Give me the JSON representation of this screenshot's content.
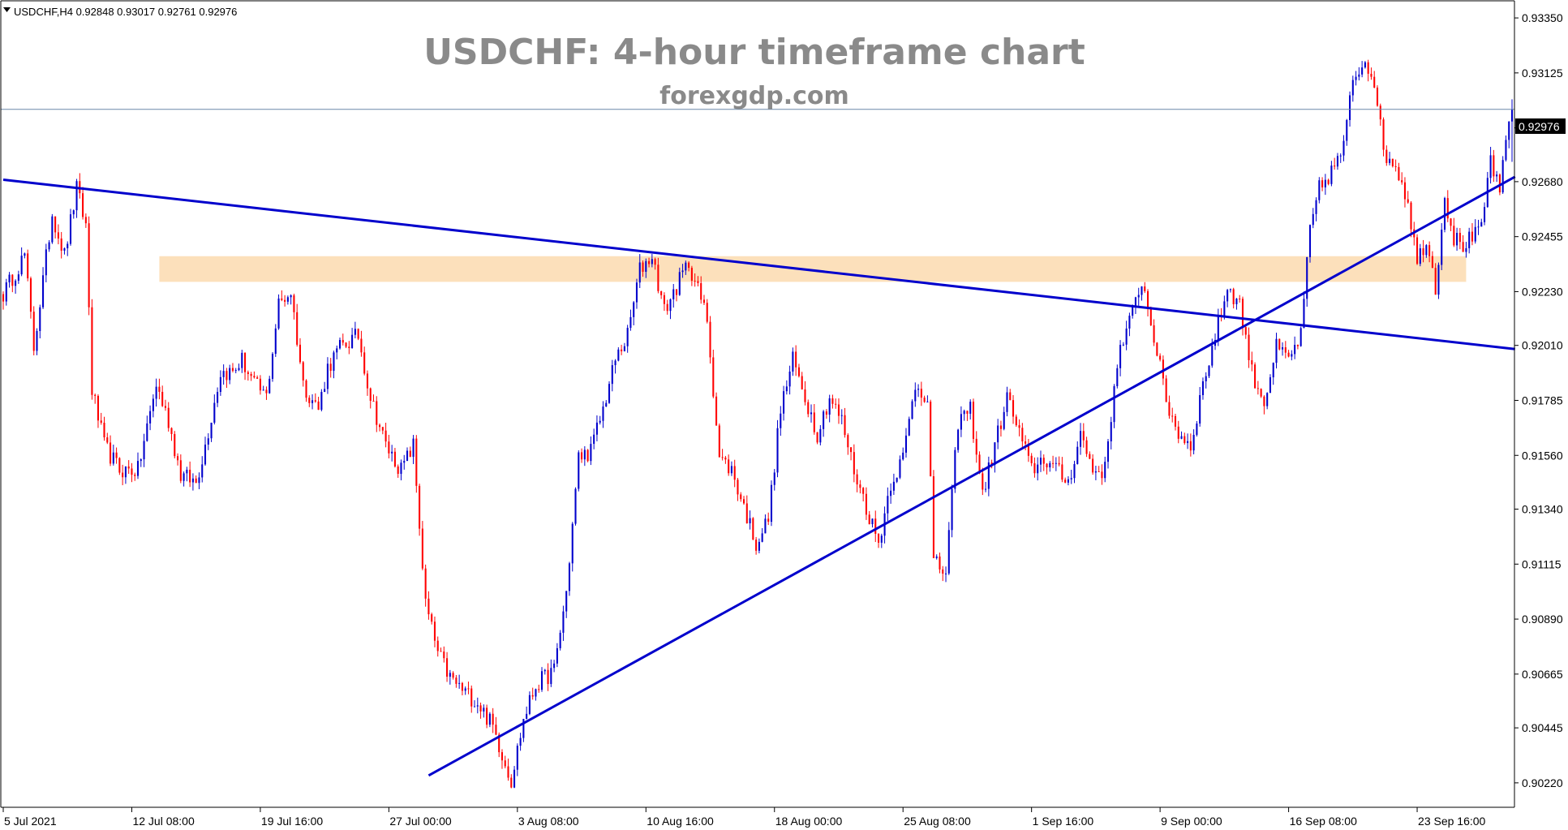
{
  "header": {
    "caret_icon": "caret-down-icon",
    "text": "USDCHF,H4  0.92848 0.93017 0.92761 0.92976"
  },
  "overlay": {
    "title": "USDCHF: 4-hour timeframe chart",
    "subtitle": "forexgdp.com"
  },
  "chart_data": {
    "type": "candlestick",
    "symbol": "USDCHF",
    "timeframe": "H4",
    "ohlc_header": {
      "open": 0.92848,
      "high": 0.93017,
      "low": 0.92761,
      "close": 0.92976
    },
    "current_price": 0.92976,
    "current_price_label": "0.92976",
    "ylim": [
      0.9012,
      0.9342
    ],
    "y_ticks": [
      "0.93350",
      "0.93125",
      "0.92900",
      "0.92680",
      "0.92455",
      "0.92230",
      "0.92010",
      "0.91785",
      "0.91560",
      "0.91340",
      "0.91115",
      "0.90890",
      "0.90665",
      "0.90445",
      "0.90220"
    ],
    "x_ticks": [
      "5 Jul 2021",
      "12 Jul 08:00",
      "19 Jul 16:00",
      "27 Jul 00:00",
      "3 Aug 08:00",
      "10 Aug 16:00",
      "18 Aug 00:00",
      "25 Aug 08:00",
      "1 Sep 16:00",
      "9 Sep 00:00",
      "16 Sep 08:00",
      "23 Sep 16:00"
    ],
    "x_tick_bars": [
      0,
      42,
      84,
      126,
      168,
      210,
      252,
      294,
      336,
      378,
      420,
      462
    ],
    "bar_count": 494,
    "colors": {
      "bull": "#0000cc",
      "bear": "#ff0000",
      "trendline": "#0000cc",
      "zone": "#fce0bb",
      "price_line": "#6a88a8"
    },
    "pivots": [
      {
        "i": 0,
        "p": 0.9222
      },
      {
        "i": 7,
        "p": 0.9238
      },
      {
        "i": 10,
        "p": 0.92
      },
      {
        "i": 16,
        "p": 0.9255
      },
      {
        "i": 20,
        "p": 0.9238
      },
      {
        "i": 24,
        "p": 0.9265
      },
      {
        "i": 27,
        "p": 0.925
      },
      {
        "i": 29,
        "p": 0.9183
      },
      {
        "i": 33,
        "p": 0.916
      },
      {
        "i": 38,
        "p": 0.915
      },
      {
        "i": 44,
        "p": 0.915
      },
      {
        "i": 50,
        "p": 0.9185
      },
      {
        "i": 54,
        "p": 0.917
      },
      {
        "i": 58,
        "p": 0.9148
      },
      {
        "i": 63,
        "p": 0.9145
      },
      {
        "i": 66,
        "p": 0.916
      },
      {
        "i": 71,
        "p": 0.919
      },
      {
        "i": 75,
        "p": 0.919
      },
      {
        "i": 78,
        "p": 0.9195
      },
      {
        "i": 82,
        "p": 0.9185
      },
      {
        "i": 86,
        "p": 0.918
      },
      {
        "i": 90,
        "p": 0.9218
      },
      {
        "i": 94,
        "p": 0.9223
      },
      {
        "i": 98,
        "p": 0.9185
      },
      {
        "i": 103,
        "p": 0.9175
      },
      {
        "i": 106,
        "p": 0.9192
      },
      {
        "i": 110,
        "p": 0.92
      },
      {
        "i": 116,
        "p": 0.9205
      },
      {
        "i": 120,
        "p": 0.918
      },
      {
        "i": 125,
        "p": 0.916
      },
      {
        "i": 130,
        "p": 0.915
      },
      {
        "i": 134,
        "p": 0.916
      },
      {
        "i": 138,
        "p": 0.9095
      },
      {
        "i": 142,
        "p": 0.9075
      },
      {
        "i": 146,
        "p": 0.9065
      },
      {
        "i": 150,
        "p": 0.906
      },
      {
        "i": 155,
        "p": 0.9055
      },
      {
        "i": 160,
        "p": 0.9045
      },
      {
        "i": 166,
        "p": 0.9023
      },
      {
        "i": 170,
        "p": 0.9048
      },
      {
        "i": 174,
        "p": 0.9062
      },
      {
        "i": 180,
        "p": 0.9068
      },
      {
        "i": 184,
        "p": 0.91
      },
      {
        "i": 188,
        "p": 0.9155
      },
      {
        "i": 192,
        "p": 0.9158
      },
      {
        "i": 196,
        "p": 0.9175
      },
      {
        "i": 200,
        "p": 0.9195
      },
      {
        "i": 204,
        "p": 0.9205
      },
      {
        "i": 208,
        "p": 0.9232
      },
      {
        "i": 212,
        "p": 0.9238
      },
      {
        "i": 216,
        "p": 0.9215
      },
      {
        "i": 220,
        "p": 0.9225
      },
      {
        "i": 224,
        "p": 0.9235
      },
      {
        "i": 230,
        "p": 0.9212
      },
      {
        "i": 234,
        "p": 0.9155
      },
      {
        "i": 238,
        "p": 0.915
      },
      {
        "i": 242,
        "p": 0.9135
      },
      {
        "i": 246,
        "p": 0.912
      },
      {
        "i": 250,
        "p": 0.913
      },
      {
        "i": 254,
        "p": 0.9175
      },
      {
        "i": 258,
        "p": 0.9195
      },
      {
        "i": 262,
        "p": 0.918
      },
      {
        "i": 266,
        "p": 0.9165
      },
      {
        "i": 270,
        "p": 0.918
      },
      {
        "i": 274,
        "p": 0.917
      },
      {
        "i": 278,
        "p": 0.915
      },
      {
        "i": 282,
        "p": 0.9135
      },
      {
        "i": 286,
        "p": 0.912
      },
      {
        "i": 290,
        "p": 0.9145
      },
      {
        "i": 294,
        "p": 0.9155
      },
      {
        "i": 298,
        "p": 0.9185
      },
      {
        "i": 302,
        "p": 0.918
      },
      {
        "i": 304,
        "p": 0.9112
      },
      {
        "i": 308,
        "p": 0.9108
      },
      {
        "i": 312,
        "p": 0.917
      },
      {
        "i": 316,
        "p": 0.9175
      },
      {
        "i": 320,
        "p": 0.914
      },
      {
        "i": 324,
        "p": 0.916
      },
      {
        "i": 328,
        "p": 0.918
      },
      {
        "i": 332,
        "p": 0.9165
      },
      {
        "i": 336,
        "p": 0.915
      },
      {
        "i": 340,
        "p": 0.9155
      },
      {
        "i": 344,
        "p": 0.915
      },
      {
        "i": 348,
        "p": 0.9145
      },
      {
        "i": 352,
        "p": 0.9165
      },
      {
        "i": 356,
        "p": 0.915
      },
      {
        "i": 360,
        "p": 0.915
      },
      {
        "i": 364,
        "p": 0.9195
      },
      {
        "i": 368,
        "p": 0.921
      },
      {
        "i": 372,
        "p": 0.9228
      },
      {
        "i": 376,
        "p": 0.9205
      },
      {
        "i": 380,
        "p": 0.9178
      },
      {
        "i": 384,
        "p": 0.9165
      },
      {
        "i": 388,
        "p": 0.916
      },
      {
        "i": 392,
        "p": 0.9185
      },
      {
        "i": 396,
        "p": 0.9205
      },
      {
        "i": 400,
        "p": 0.9225
      },
      {
        "i": 404,
        "p": 0.9218
      },
      {
        "i": 408,
        "p": 0.919
      },
      {
        "i": 412,
        "p": 0.9178
      },
      {
        "i": 416,
        "p": 0.92
      },
      {
        "i": 420,
        "p": 0.9195
      },
      {
        "i": 424,
        "p": 0.9205
      },
      {
        "i": 427,
        "p": 0.9248
      },
      {
        "i": 430,
        "p": 0.9265
      },
      {
        "i": 434,
        "p": 0.9272
      },
      {
        "i": 438,
        "p": 0.9282
      },
      {
        "i": 441,
        "p": 0.931
      },
      {
        "i": 445,
        "p": 0.9318
      },
      {
        "i": 448,
        "p": 0.931
      },
      {
        "i": 451,
        "p": 0.928
      },
      {
        "i": 455,
        "p": 0.9275
      },
      {
        "i": 459,
        "p": 0.926
      },
      {
        "i": 462,
        "p": 0.9235
      },
      {
        "i": 465,
        "p": 0.9245
      },
      {
        "i": 468,
        "p": 0.9225
      },
      {
        "i": 471,
        "p": 0.9262
      },
      {
        "i": 474,
        "p": 0.9245
      },
      {
        "i": 477,
        "p": 0.9242
      },
      {
        "i": 480,
        "p": 0.9245
      },
      {
        "i": 483,
        "p": 0.9248
      },
      {
        "i": 486,
        "p": 0.9278
      },
      {
        "i": 489,
        "p": 0.9262
      },
      {
        "i": 491,
        "p": 0.9285
      },
      {
        "i": 493,
        "p": 0.9298
      }
    ],
    "trendlines": [
      {
        "name": "descending-trendline",
        "from": {
          "bar": 0,
          "price": 0.92688
        },
        "to": {
          "bar": 494,
          "price": 0.91995
        }
      },
      {
        "name": "ascending-trendline",
        "from": {
          "bar": 139,
          "price": 0.9025
        },
        "to": {
          "bar": 494,
          "price": 0.927
        }
      }
    ],
    "zone": {
      "from_bar": 51,
      "to_bar": 478,
      "price_low": 0.9227,
      "price_high": 0.92375
    }
  }
}
